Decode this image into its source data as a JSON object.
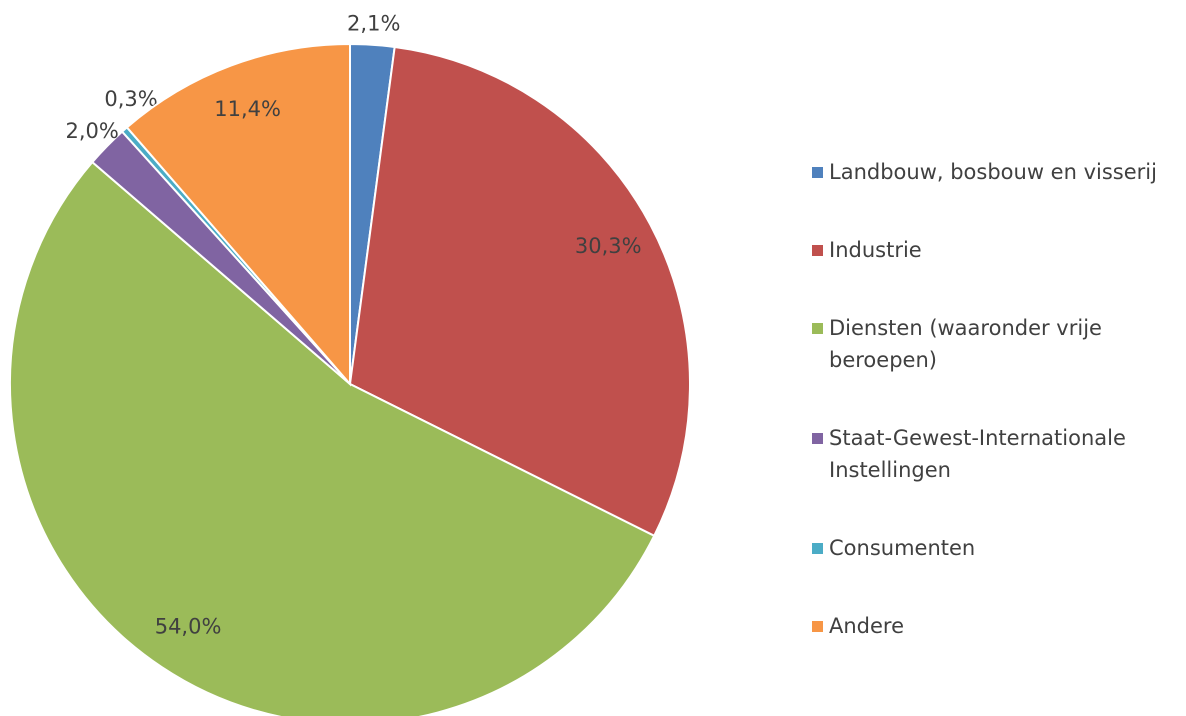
{
  "chart_data": {
    "type": "pie",
    "categories": [
      "Landbouw, bosbouw en visserij",
      "Industrie",
      "Diensten (waaronder vrije beroepen)",
      "Staat-Gewest-Internationale Instellingen",
      "Consumenten",
      "Andere"
    ],
    "values": [
      2.1,
      30.3,
      54.0,
      2.0,
      0.3,
      11.4
    ],
    "value_labels": [
      "2,1%",
      "30,3%",
      "54,0%",
      "2,0%",
      "0,3%",
      "11,4%"
    ],
    "colors": [
      "#4f81bd",
      "#c0504d",
      "#9bbb59",
      "#8064a2",
      "#4bacc6",
      "#f79646"
    ]
  }
}
